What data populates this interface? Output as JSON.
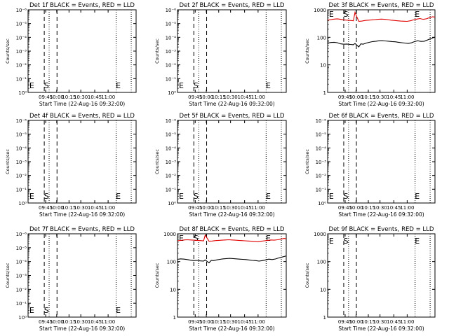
{
  "chart_data": [
    {
      "type": "line",
      "title": "Det 1f BLACK = Events, RED = LLD",
      "xlabel": "Start Time (22-Aug-16 09:32:00)",
      "ylabel": "Counts/sec",
      "yscale": "log",
      "y_tick_labels": [
        "10⁰",
        "10⁻¹",
        "10⁻²",
        "10⁻³",
        "10⁻⁴",
        "10⁻⁵",
        "10⁻⁶"
      ],
      "x_tick_labels": [
        "09:45",
        "10:00",
        "10:15",
        "10:30",
        "10:45",
        "11:00"
      ],
      "markers": [
        "E",
        "S",
        "E"
      ],
      "series": []
    },
    {
      "type": "line",
      "title": "Det 2f BLACK = Events, RED = LLD",
      "xlabel": "Start Time (22-Aug-16 09:32:00)",
      "ylabel": "Counts/sec",
      "yscale": "log",
      "y_tick_labels": [
        "10⁰",
        "10⁻¹",
        "10⁻²",
        "10⁻³",
        "10⁻⁴",
        "10⁻⁵",
        "10⁻⁶"
      ],
      "x_tick_labels": [
        "09:45",
        "10:00",
        "10:15",
        "10:30",
        "10:45",
        "11:00"
      ],
      "markers": [
        "E",
        "S",
        "E"
      ],
      "series": []
    },
    {
      "type": "line",
      "title": "Det 3f BLACK = Events, RED = LLD",
      "xlabel": "Start Time (22-Aug-16 09:32:00)",
      "ylabel": "Counts/sec",
      "yscale": "log",
      "y_tick_labels": [
        "1",
        "10",
        "100",
        "1000"
      ],
      "x_tick_labels": [
        "09:45",
        "10:00",
        "10:15",
        "10:30",
        "10:45",
        "11:00"
      ],
      "markers": [
        "E",
        "S",
        "E"
      ],
      "series": [
        {
          "color": "#e00000",
          "x": [
            0.0,
            0.03,
            0.06,
            0.09,
            0.12,
            0.15,
            0.18,
            0.21,
            0.24,
            0.255,
            0.29,
            0.32,
            0.35,
            0.38,
            0.41,
            0.44,
            0.47,
            0.5,
            0.53,
            0.56,
            0.59,
            0.62,
            0.65,
            0.68,
            0.71,
            0.74,
            0.77,
            0.8,
            0.83,
            0.86,
            0.89,
            0.92,
            0.95,
            0.98,
            1.0
          ],
          "y": [
            420,
            440,
            460,
            470,
            450,
            430,
            420,
            410,
            400,
            800,
            380,
            390,
            410,
            420,
            430,
            440,
            450,
            460,
            450,
            440,
            420,
            410,
            400,
            390,
            385,
            380,
            400,
            430,
            460,
            480,
            450,
            470,
            520,
            560,
            540
          ]
        },
        {
          "color": "#000000",
          "x": [
            0.0,
            0.03,
            0.06,
            0.09,
            0.12,
            0.15,
            0.18,
            0.21,
            0.24,
            0.255,
            0.29,
            0.31,
            0.33,
            0.36,
            0.39,
            0.42,
            0.45,
            0.48,
            0.51,
            0.54,
            0.57,
            0.6,
            0.63,
            0.66,
            0.69,
            0.72,
            0.75,
            0.78,
            0.81,
            0.84,
            0.87,
            0.9,
            0.93,
            0.96,
            1.0
          ],
          "y": [
            62,
            65,
            66,
            64,
            58,
            56,
            57,
            55,
            54,
            60,
            45,
            58,
            56,
            62,
            66,
            70,
            72,
            75,
            76,
            74,
            72,
            70,
            69,
            66,
            64,
            62,
            60,
            63,
            70,
            75,
            71,
            72,
            80,
            90,
            102
          ]
        }
      ]
    },
    {
      "type": "line",
      "title": "Det 4f BLACK = Events, RED = LLD",
      "xlabel": "Start Time (22-Aug-16 09:32:00)",
      "ylabel": "Counts/sec",
      "yscale": "log",
      "y_tick_labels": [
        "10⁰",
        "10⁻¹",
        "10⁻²",
        "10⁻³",
        "10⁻⁴",
        "10⁻⁵",
        "10⁻⁶"
      ],
      "x_tick_labels": [
        "09:45",
        "10:00",
        "10:15",
        "10:30",
        "10:45",
        "11:00"
      ],
      "markers": [
        "E",
        "S",
        "E"
      ],
      "series": []
    },
    {
      "type": "line",
      "title": "Det 5f BLACK = Events, RED = LLD",
      "xlabel": "Start Time (22-Aug-16 09:32:00)",
      "ylabel": "Counts/sec",
      "yscale": "log",
      "y_tick_labels": [
        "10⁰",
        "10⁻¹",
        "10⁻²",
        "10⁻³",
        "10⁻⁴",
        "10⁻⁵",
        "10⁻⁶"
      ],
      "x_tick_labels": [
        "09:45",
        "10:00",
        "10:15",
        "10:30",
        "10:45",
        "11:00"
      ],
      "markers": [
        "E",
        "S",
        "E"
      ],
      "series": []
    },
    {
      "type": "line",
      "title": "Det 6f BLACK = Events, RED = LLD",
      "xlabel": "Start Time (22-Aug-16 09:32:00)",
      "ylabel": "Counts/sec",
      "yscale": "log",
      "y_tick_labels": [
        "10⁰",
        "10⁻¹",
        "10⁻²",
        "10⁻³",
        "10⁻⁴",
        "10⁻⁵",
        "10⁻⁶"
      ],
      "x_tick_labels": [
        "09:45",
        "10:00",
        "10:15",
        "10:30",
        "10:45",
        "11:00"
      ],
      "markers": [
        "E",
        "S",
        "E"
      ],
      "series": []
    },
    {
      "type": "line",
      "title": "Det 7f BLACK = Events, RED = LLD",
      "xlabel": "Start Time (22-Aug-16 09:32:00)",
      "ylabel": "Counts/sec",
      "yscale": "log",
      "y_tick_labels": [
        "10⁰",
        "10⁻¹",
        "10⁻²",
        "10⁻³",
        "10⁻⁴",
        "10⁻⁵",
        "10⁻⁶"
      ],
      "x_tick_labels": [
        "09:45",
        "10:00",
        "10:15",
        "10:30",
        "10:45",
        "11:00"
      ],
      "markers": [
        "E",
        "S",
        "E"
      ],
      "series": []
    },
    {
      "type": "line",
      "title": "Det 8f BLACK = Events, RED = LLD",
      "xlabel": "Start Time (22-Aug-16 09:32:00)",
      "ylabel": "Counts/sec",
      "yscale": "log",
      "y_tick_labels": [
        "1",
        "10",
        "100",
        "1000"
      ],
      "x_tick_labels": [
        "09:45",
        "10:00",
        "10:15",
        "10:30",
        "10:45",
        "11:00"
      ],
      "markers": [
        "E",
        "S",
        "E"
      ],
      "series": [
        {
          "color": "#e00000",
          "x": [
            0.0,
            0.03,
            0.06,
            0.09,
            0.12,
            0.15,
            0.18,
            0.21,
            0.24,
            0.255,
            0.29,
            0.32,
            0.35,
            0.38,
            0.41,
            0.44,
            0.47,
            0.5,
            0.53,
            0.56,
            0.59,
            0.62,
            0.65,
            0.68,
            0.71,
            0.74,
            0.77,
            0.8,
            0.83,
            0.86,
            0.89,
            0.92,
            0.95,
            0.98,
            1.0
          ],
          "y": [
            560,
            580,
            600,
            610,
            600,
            590,
            580,
            570,
            560,
            900,
            540,
            550,
            570,
            580,
            590,
            600,
            610,
            600,
            590,
            580,
            570,
            560,
            550,
            540,
            530,
            520,
            540,
            560,
            580,
            600,
            590,
            610,
            640,
            680,
            660
          ]
        },
        {
          "color": "#000000",
          "x": [
            0.0,
            0.03,
            0.06,
            0.09,
            0.12,
            0.15,
            0.18,
            0.21,
            0.24,
            0.255,
            0.29,
            0.31,
            0.33,
            0.36,
            0.39,
            0.42,
            0.45,
            0.48,
            0.51,
            0.54,
            0.57,
            0.6,
            0.63,
            0.66,
            0.69,
            0.72,
            0.75,
            0.78,
            0.81,
            0.84,
            0.87,
            0.9,
            0.93,
            0.96,
            1.0
          ],
          "y": [
            120,
            125,
            122,
            118,
            112,
            108,
            110,
            106,
            104,
            115,
            90,
            110,
            108,
            115,
            120,
            125,
            128,
            130,
            128,
            125,
            122,
            120,
            118,
            114,
            110,
            108,
            104,
            108,
            115,
            122,
            118,
            124,
            135,
            145,
            160
          ]
        }
      ]
    },
    {
      "type": "line",
      "title": "Det 9f BLACK = Events, RED = LLD",
      "xlabel": "Start Time (22-Aug-16 09:32:00)",
      "ylabel": "Counts/sec",
      "yscale": "log",
      "y_tick_labels": [
        "1",
        "10",
        "100",
        "1000"
      ],
      "x_tick_labels": [
        "09:45",
        "10:00",
        "10:15",
        "10:30",
        "10:45",
        "11:00"
      ],
      "markers": [
        "E",
        "S",
        "E"
      ],
      "series": []
    }
  ]
}
